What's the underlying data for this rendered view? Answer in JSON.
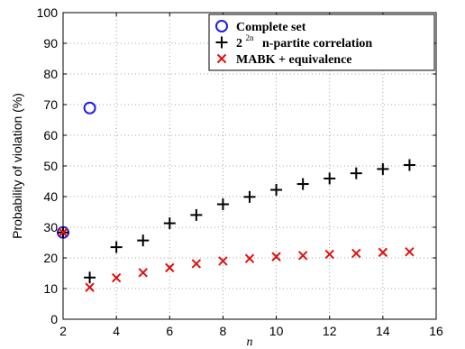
{
  "chart_data": {
    "type": "scatter",
    "title": "",
    "xlabel": "n",
    "ylabel": "Probability of violation (%)",
    "xlim": [
      2,
      16
    ],
    "ylim": [
      0,
      100
    ],
    "xticks": [
      2,
      4,
      6,
      8,
      10,
      12,
      14,
      16
    ],
    "yticks": [
      0,
      10,
      20,
      30,
      40,
      50,
      60,
      70,
      80,
      90,
      100
    ],
    "grid": true,
    "legend_position": "top-right",
    "series": [
      {
        "name": "Complete set",
        "marker": "circle",
        "color": "#1f1fe0",
        "x": [
          2,
          3
        ],
        "y": [
          28.3,
          68.9
        ]
      },
      {
        "name": "2^{2^n} n-partite correlation",
        "legend_parts": {
          "base": "2",
          "sup": "2n",
          "tail": "n-partite correlation"
        },
        "marker": "plus",
        "color": "#000000",
        "x": [
          2,
          3,
          4,
          5,
          6,
          7,
          8,
          9,
          10,
          11,
          12,
          13,
          14,
          15
        ],
        "y": [
          28.3,
          13.6,
          23.5,
          25.7,
          31.3,
          34.0,
          37.5,
          39.9,
          42.2,
          44.1,
          45.9,
          47.6,
          49.0,
          50.3
        ]
      },
      {
        "name": "MABK + equivalence",
        "marker": "x",
        "color": "#e01010",
        "x": [
          2,
          3,
          4,
          5,
          6,
          7,
          8,
          9,
          10,
          11,
          12,
          13,
          14,
          15
        ],
        "y": [
          28.3,
          10.4,
          13.5,
          15.2,
          16.8,
          18.1,
          19.0,
          19.8,
          20.4,
          20.8,
          21.2,
          21.5,
          21.8,
          22.0
        ]
      }
    ]
  }
}
